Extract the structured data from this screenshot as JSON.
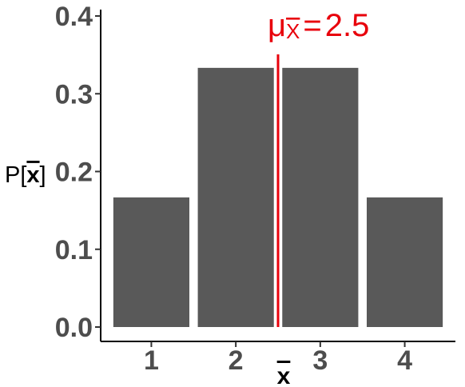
{
  "chart_data": {
    "type": "bar",
    "categories": [
      "1",
      "2",
      "3",
      "4"
    ],
    "values": [
      0.1667,
      0.3333,
      0.3333,
      0.1667
    ],
    "ylim": [
      0,
      0.4
    ],
    "yticks": [
      "0.0",
      "0.1",
      "0.2",
      "0.3",
      "0.4"
    ],
    "ytick_values": [
      0,
      0.1,
      0.2,
      0.3,
      0.4
    ],
    "xlabel": "x",
    "ylabel_prefix": "P[",
    "ylabel_var": "x",
    "ylabel_suffix": "]",
    "grid": false,
    "bar_color": "#595959",
    "mean_line": {
      "x": 2.5,
      "label_symbol": "μ",
      "label_subscript": "X",
      "label_equals": "=",
      "label_value": "2.5",
      "color": "#e8000b"
    }
  }
}
